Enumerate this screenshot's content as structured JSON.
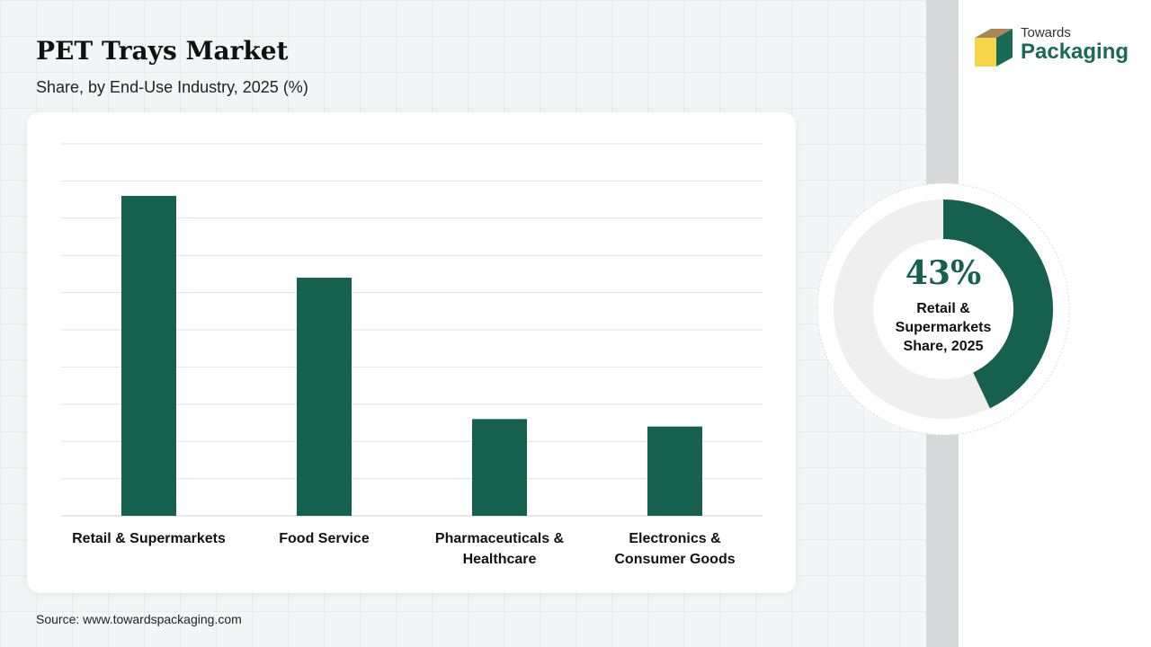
{
  "header": {
    "title": "PET Trays Market",
    "subtitle": "Share, by End-Use Industry, 2025 (%)"
  },
  "source": "Source: www.towardspackaging.com",
  "logo": {
    "line1": "Towards",
    "line2": "Packaging"
  },
  "colors": {
    "bar": "#15604f",
    "accent": "#1a6b55",
    "grid": "#e2e2e2",
    "donut_track": "#efefef"
  },
  "chart_data": {
    "type": "bar",
    "title": "PET Trays Market",
    "subtitle": "Share, by End-Use Industry, 2025 (%)",
    "categories": [
      "Retail & Supermarkets",
      "Food Service",
      "Pharmaceuticals & Healthcare",
      "Electronics & Consumer Goods"
    ],
    "category_lines": [
      [
        "Retail & Supermarkets"
      ],
      [
        "Food Service"
      ],
      [
        "Pharmaceuticals &",
        "Healthcare"
      ],
      [
        "Electronics &",
        "Consumer Goods"
      ]
    ],
    "values": [
      43,
      32,
      13,
      12
    ],
    "ylim": [
      0,
      50
    ],
    "grid": true,
    "yaxis_labels_visible": false
  },
  "highlight": {
    "value_text": "43%",
    "value": 43,
    "label_lines": [
      "Retail &",
      "Supermarkets",
      "Share, 2025"
    ]
  }
}
